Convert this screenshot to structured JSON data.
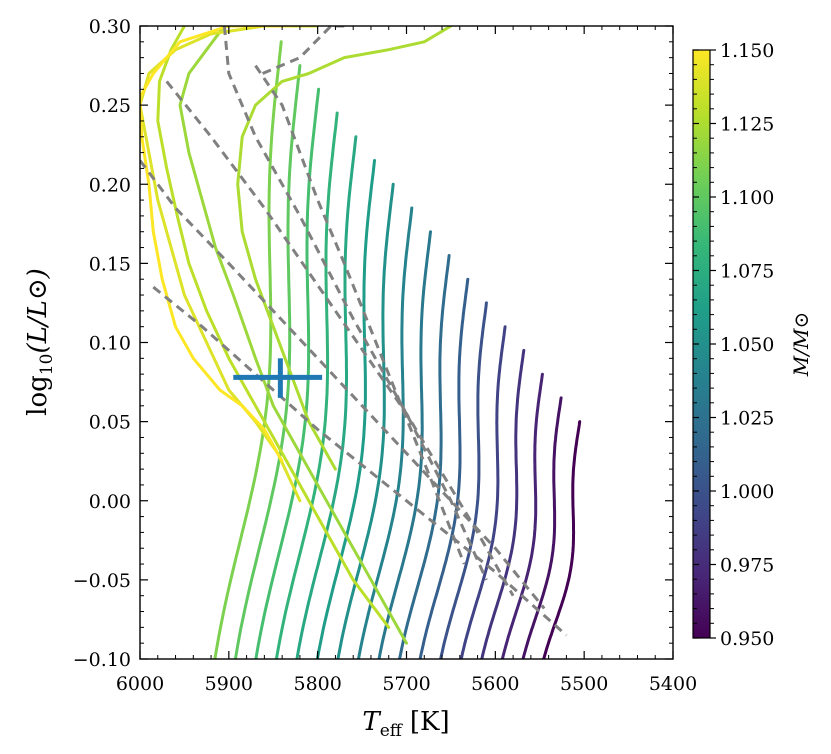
{
  "chart_data": {
    "type": "line",
    "title": "",
    "xlabel": "T_eff [K]",
    "xlabel_main": "T",
    "xlabel_sub": "eff",
    "xlabel_unit": "[K]",
    "ylabel": "log10(L/L⊙)",
    "ylabel_prefix": "log",
    "ylabel_sub": "10",
    "ylabel_body": "(L/L⊙)",
    "xlim": [
      6000,
      5400
    ],
    "ylim": [
      -0.1,
      0.3
    ],
    "xticks": [
      6000,
      5900,
      5800,
      5700,
      5600,
      5500,
      5400
    ],
    "xtick_labels": [
      "6000",
      "5900",
      "5800",
      "5700",
      "5600",
      "5500",
      "5400"
    ],
    "yticks": [
      -0.1,
      -0.05,
      0.0,
      0.05,
      0.1,
      0.15,
      0.2,
      0.25,
      0.3
    ],
    "ytick_labels": [
      "−0.10",
      "−0.05",
      "0.00",
      "0.05",
      "0.10",
      "0.15",
      "0.20",
      "0.25",
      "0.30"
    ],
    "colorbar": {
      "label": "M/M⊙",
      "range": [
        0.95,
        1.15
      ],
      "ticks": [
        0.95,
        0.975,
        1.0,
        1.025,
        1.05,
        1.075,
        1.1,
        1.125,
        1.15
      ],
      "tick_labels": [
        "0.950",
        "0.975",
        "1.000",
        "1.025",
        "1.050",
        "1.075",
        "1.100",
        "1.125",
        "1.150"
      ],
      "colormap": "viridis"
    },
    "tracks": [
      {
        "mass": 0.95,
        "teff_top": 5505,
        "lum_top": 0.05
      },
      {
        "mass": 0.96,
        "teff_top": 5526,
        "lum_top": 0.065
      },
      {
        "mass": 0.97,
        "teff_top": 5547,
        "lum_top": 0.08
      },
      {
        "mass": 0.98,
        "teff_top": 5568,
        "lum_top": 0.095
      },
      {
        "mass": 0.99,
        "teff_top": 5589,
        "lum_top": 0.11
      },
      {
        "mass": 1.0,
        "teff_top": 5610,
        "lum_top": 0.125
      },
      {
        "mass": 1.01,
        "teff_top": 5631,
        "lum_top": 0.14
      },
      {
        "mass": 1.02,
        "teff_top": 5652,
        "lum_top": 0.155
      },
      {
        "mass": 1.03,
        "teff_top": 5673,
        "lum_top": 0.17
      },
      {
        "mass": 1.04,
        "teff_top": 5694,
        "lum_top": 0.185
      },
      {
        "mass": 1.05,
        "teff_top": 5715,
        "lum_top": 0.2
      },
      {
        "mass": 1.06,
        "teff_top": 5736,
        "lum_top": 0.215
      },
      {
        "mass": 1.07,
        "teff_top": 5757,
        "lum_top": 0.23
      },
      {
        "mass": 1.08,
        "teff_top": 5778,
        "lum_top": 0.245
      },
      {
        "mass": 1.09,
        "teff_top": 5799,
        "lum_top": 0.26
      },
      {
        "mass": 1.1,
        "teff_top": 5820,
        "lum_top": 0.275
      },
      {
        "mass": 1.11,
        "teff_top": 5841,
        "lum_top": 0.29
      }
    ],
    "isochrones": [
      {
        "x": [
          5985,
          5930,
          5880,
          5800,
          5700,
          5600,
          5520
        ],
        "y": [
          0.135,
          0.11,
          0.085,
          0.045,
          0.0,
          -0.045,
          -0.085
        ]
      },
      {
        "x": [
          6000,
          5960,
          5900,
          5800,
          5700,
          5600,
          5545
        ],
        "y": [
          0.215,
          0.185,
          0.15,
          0.09,
          0.03,
          -0.03,
          -0.068
        ]
      },
      {
        "x": [
          5970,
          5920,
          5860,
          5780,
          5700,
          5620,
          5580
        ],
        "y": [
          0.265,
          0.23,
          0.185,
          0.12,
          0.055,
          -0.02,
          -0.06
        ]
      },
      {
        "x": [
          5905,
          5900,
          5870,
          5820,
          5760,
          5700,
          5650,
          5610
        ],
        "y": [
          0.3,
          0.27,
          0.23,
          0.18,
          0.115,
          0.055,
          0.0,
          -0.05
        ]
      },
      {
        "x": [
          5870,
          5840,
          5820,
          5800,
          5770,
          5720,
          5670,
          5635
        ],
        "y": [
          0.275,
          0.25,
          0.22,
          0.19,
          0.15,
          0.08,
          0.01,
          -0.04
        ]
      },
      {
        "x": [
          5862,
          5820,
          5785,
          5770
        ],
        "y": [
          0.27,
          0.28,
          0.3,
          0.3
        ]
      }
    ],
    "observation": {
      "teff": 5842,
      "teff_err": [
        5895,
        5795
      ],
      "lum": 0.078,
      "lum_err": [
        0.065,
        0.09
      ],
      "color": "#1f77b4"
    },
    "isochrone_color": "#808080"
  }
}
